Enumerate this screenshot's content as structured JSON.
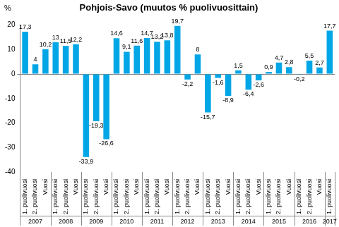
{
  "chart_data": {
    "type": "bar",
    "title": "Pohjois-Savo (muutos % puolivuosittain)",
    "y_label": "%",
    "categories": [
      [
        "2007",
        "1. puolivuosi"
      ],
      [
        "2007",
        "2. puolivuosi"
      ],
      [
        "2007",
        "Vuosi"
      ],
      [
        "2008",
        "1. puolivuosi"
      ],
      [
        "2008",
        "2. puolivuosi"
      ],
      [
        "2008",
        "Vuosi"
      ],
      [
        "2009",
        "1. puolivuosi"
      ],
      [
        "2009",
        "2. puolivuosi"
      ],
      [
        "2009",
        "Vuosi"
      ],
      [
        "2010",
        "1. puolivuosi"
      ],
      [
        "2010",
        "2. puolivuosi"
      ],
      [
        "2010",
        "Vuosi"
      ],
      [
        "2011",
        "1. puolivuosi"
      ],
      [
        "2011",
        "2. puolivuosi"
      ],
      [
        "2011",
        "Vuosi"
      ],
      [
        "2012",
        "1. puolivuosi"
      ],
      [
        "2012",
        "2. puolivuosi"
      ],
      [
        "2012",
        "Vuosi"
      ],
      [
        "2013",
        "1. puolivuosi"
      ],
      [
        "2013",
        "2. puolivuosi"
      ],
      [
        "2013",
        "Vuosi"
      ],
      [
        "2014",
        "1. puolivuosi"
      ],
      [
        "2014",
        "2. puolivuosi"
      ],
      [
        "2014",
        "Vuosi"
      ],
      [
        "2015",
        "1. puolivuosi"
      ],
      [
        "2015",
        "2. puolivuosi"
      ],
      [
        "2015",
        "Vuosi"
      ],
      [
        "2016",
        "1. puolivuosi"
      ],
      [
        "2016",
        "2. puolivuosi"
      ],
      [
        "2016",
        "Vuosi"
      ],
      [
        "2017",
        "1. puolivuosi"
      ]
    ],
    "values": [
      17.3,
      4,
      10.2,
      13,
      11.5,
      12.2,
      -33.9,
      -19.3,
      -26.6,
      14.6,
      9.1,
      11.6,
      14.7,
      13.2,
      13.8,
      19.7,
      -2.2,
      8,
      -15.7,
      -1.6,
      -8.9,
      1.5,
      -6.4,
      -2.6,
      0.9,
      4.7,
      2.8,
      -0.2,
      5.5,
      2.7,
      17.7
    ],
    "value_labels": [
      "17,3",
      "4",
      "10,2",
      "13",
      "11,5",
      "12,2",
      "-33,9",
      "-19,3",
      "-26,6",
      "14,6",
      "9,1",
      "11,6",
      "14,7",
      "13,2",
      "13,8",
      "19,7",
      "-2,2",
      "8",
      "-15,7",
      "-1,6",
      "-8,9",
      "1,5",
      "-6,4",
      "-2,6",
      "0,9",
      "4,7",
      "2,8",
      "-0,2",
      "5,5",
      "2,7",
      "17,7"
    ],
    "color": "#00a6e6",
    "ylim": [
      -40,
      20
    ],
    "yticks": [
      -40,
      -30,
      -20,
      -10,
      0,
      10,
      20
    ],
    "grid": false,
    "data_labels": true
  }
}
